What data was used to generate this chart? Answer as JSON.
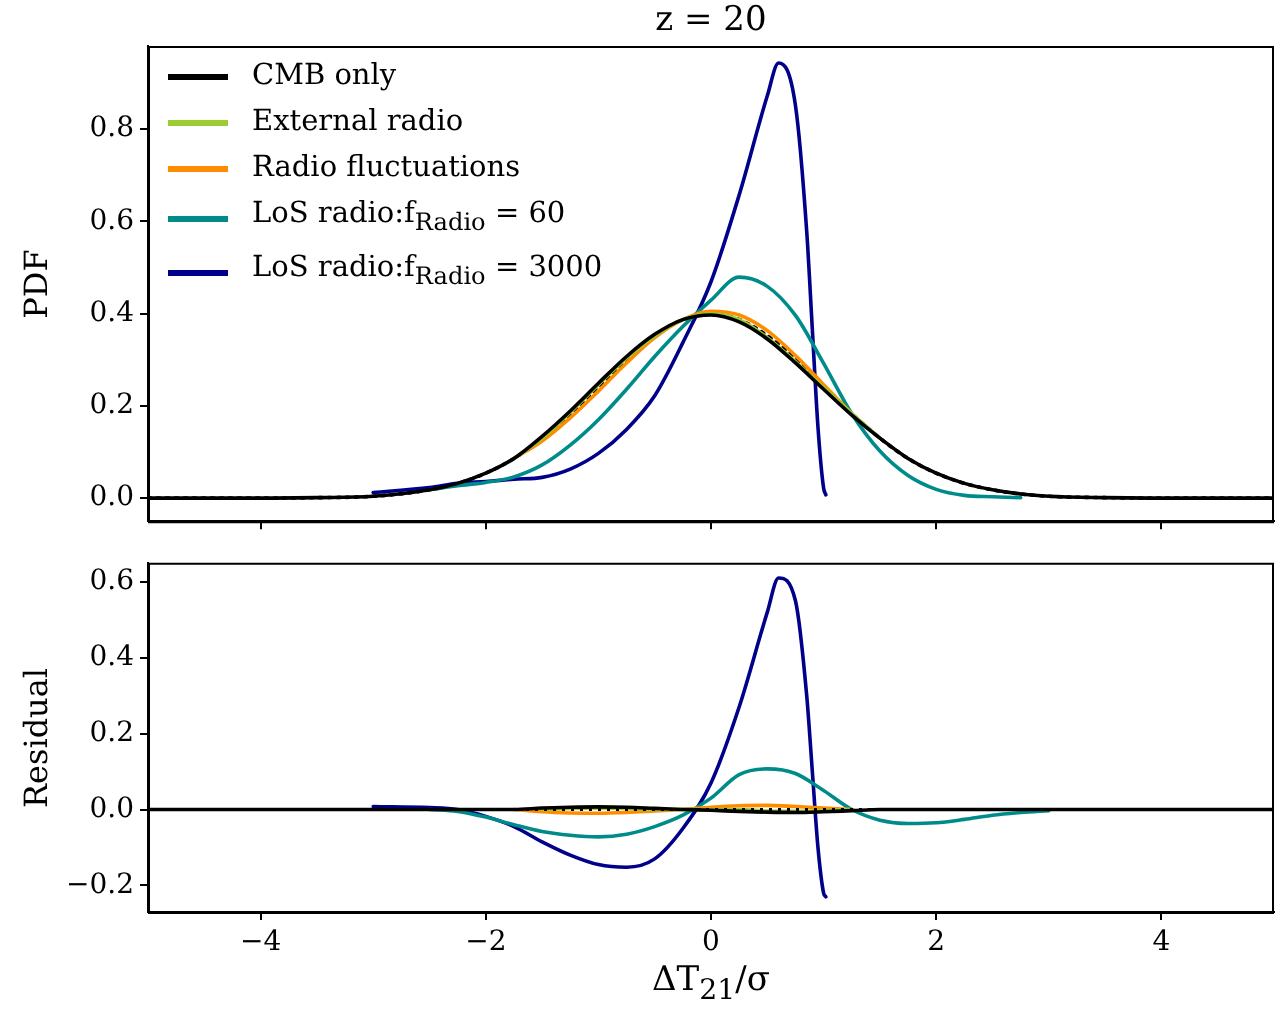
{
  "chart_data": [
    {
      "type": "line",
      "title": "z = 20",
      "ylabel": "PDF",
      "xlim": [
        -5,
        5
      ],
      "xticks": [
        -4,
        -2,
        0,
        2,
        4
      ],
      "ylim": [
        -0.05,
        0.98
      ],
      "yticks": [
        {
          "value": 0,
          "label": "0.0"
        },
        0.2,
        0.4,
        0.6,
        0.8
      ],
      "tick_labels": "y",
      "grid": false,
      "legend": "top left",
      "series": [
        {
          "name": "CMB only",
          "color": "#000000",
          "x": [
            -5,
            -4.5,
            -4,
            -3.5,
            -3,
            -2.5,
            -2.25,
            -2,
            -1.75,
            -1.5,
            -1.25,
            -1,
            -0.75,
            -0.5,
            -0.25,
            0,
            0.25,
            0.5,
            0.75,
            1,
            1.25,
            1.5,
            1.75,
            2,
            2.25,
            2.5,
            2.75,
            3,
            3.5,
            4,
            4.5,
            5
          ],
          "values": [
            0,
            0,
            0,
            0.001,
            0.004,
            0.018,
            0.032,
            0.054,
            0.086,
            0.134,
            0.189,
            0.249,
            0.307,
            0.355,
            0.387,
            0.397,
            0.382,
            0.345,
            0.293,
            0.236,
            0.18,
            0.13,
            0.086,
            0.054,
            0.032,
            0.018,
            0.009,
            0.004,
            0.001,
            0,
            0,
            0
          ]
        },
        {
          "name": "External radio",
          "color": "#9acd32",
          "x": [
            -1.75,
            -1.5,
            -1.25,
            -1,
            -0.75,
            -0.5,
            -0.25,
            0,
            0.25,
            0.5,
            0.75,
            1,
            1.25,
            1.5
          ],
          "values": [
            0.086,
            0.13,
            0.186,
            0.246,
            0.304,
            0.352,
            0.387,
            0.399,
            0.387,
            0.348,
            0.296,
            0.239,
            0.183,
            0.13
          ]
        },
        {
          "name": "Radio fluctuations",
          "color": "#ff8c00",
          "x": [
            -1.75,
            -1.5,
            -1.25,
            -1,
            -0.75,
            -0.5,
            -0.25,
            0,
            0.25,
            0.5,
            0.75,
            1,
            1.25
          ],
          "values": [
            0.086,
            0.124,
            0.174,
            0.232,
            0.293,
            0.348,
            0.387,
            0.405,
            0.397,
            0.363,
            0.309,
            0.246,
            0.183
          ]
        },
        {
          "name": "LoS radio:f$_{Radio}$ = 60",
          "color": "#008b8b",
          "x": [
            -2.5,
            -2.25,
            -2,
            -1.75,
            -1.5,
            -1.25,
            -1,
            -0.75,
            -0.5,
            -0.25,
            0,
            0.25,
            0.5,
            0.75,
            1,
            1.25,
            1.5,
            1.75,
            2,
            2.25,
            2.5,
            2.75
          ],
          "values": [
            0.018,
            0.027,
            0.034,
            0.046,
            0.072,
            0.115,
            0.17,
            0.236,
            0.307,
            0.372,
            0.429,
            0.479,
            0.459,
            0.396,
            0.292,
            0.183,
            0.102,
            0.049,
            0.019,
            0.006,
            0.003,
            0.001
          ]
        },
        {
          "name": "LoS radio:f$_{Radio}$ = 3000",
          "color": "#00008b",
          "x": [
            -3,
            -2.5,
            -2.25,
            -2,
            -1.75,
            -1.5,
            -1.25,
            -1,
            -0.75,
            -0.5,
            -0.25,
            0,
            0.25,
            0.5,
            0.6,
            0.75,
            0.85,
            0.9,
            0.95,
            1,
            1.02
          ],
          "values": [
            0.012,
            0.023,
            0.032,
            0.036,
            0.041,
            0.045,
            0.063,
            0.097,
            0.149,
            0.222,
            0.337,
            0.469,
            0.657,
            0.872,
            0.943,
            0.851,
            0.578,
            0.366,
            0.154,
            0.022,
            0.007
          ]
        },
        {
          "color": "#000000",
          "line_style": "dotted",
          "x": [
            -5,
            -4.5,
            -4,
            -3.5,
            -3,
            -2.5,
            -2.25,
            -2,
            -1.75,
            -1.5,
            -1.25,
            -1,
            -0.75,
            -0.5,
            -0.25,
            0,
            0.25,
            0.5,
            0.75,
            1,
            1.25,
            1.5,
            1.75,
            2,
            2.25,
            2.5,
            2.75,
            3,
            3.5,
            4,
            4.5,
            5
          ],
          "values": [
            0,
            0,
            0,
            0.001,
            0.004,
            0.018,
            0.032,
            0.054,
            0.086,
            0.13,
            0.183,
            0.242,
            0.301,
            0.352,
            0.387,
            0.399,
            0.387,
            0.352,
            0.301,
            0.242,
            0.183,
            0.13,
            0.086,
            0.054,
            0.032,
            0.018,
            0.009,
            0.004,
            0.001,
            0,
            0,
            0
          ]
        }
      ]
    },
    {
      "type": "line",
      "xlabel": "ΔT$_{21}$/σ",
      "ylabel": "Residual",
      "xlim": [
        -5,
        5
      ],
      "xticks": [
        -4,
        -2,
        0,
        2,
        4
      ],
      "ylim": [
        -0.27,
        0.65
      ],
      "yticks": [
        -0.2,
        {
          "value": 0,
          "label": "0.0"
        },
        0.2,
        0.4,
        0.6
      ],
      "grid": false,
      "ref_lines": [
        {
          "axis": "y",
          "value": 0,
          "color": "#000000",
          "line_style": "dotted"
        }
      ],
      "series": [
        {
          "color": "#000000",
          "x": [
            -5,
            -4.5,
            -4,
            -3.5,
            -3,
            -2.5,
            -2.25,
            -2,
            -1.75,
            -1.5,
            -1.25,
            -1,
            -0.75,
            -0.5,
            -0.25,
            0,
            0.25,
            0.5,
            0.75,
            1,
            1.25,
            1.5,
            1.75,
            2,
            2.25,
            2.5,
            2.75,
            3,
            3.5,
            4,
            4.5,
            5
          ],
          "values": [
            0,
            0,
            0,
            0,
            0,
            0,
            0,
            0,
            0,
            0.004,
            0.006,
            0.007,
            0.006,
            0.003,
            0,
            -0.002,
            -0.005,
            -0.007,
            -0.008,
            -0.006,
            -0.003,
            0,
            0,
            0,
            0,
            0,
            0,
            0,
            0,
            0,
            0,
            0
          ]
        },
        {
          "color": "#9acd32",
          "x": [
            -1.5,
            -1.25,
            -1,
            -0.75,
            -0.5,
            -0.25,
            0,
            0.25,
            0.5,
            0.75,
            1,
            1.25
          ],
          "values": [
            0,
            0.003,
            0.004,
            0.003,
            0,
            0,
            0,
            0,
            -0.004,
            -0.005,
            -0.003,
            0
          ]
        },
        {
          "color": "#ff8c00",
          "x": [
            -1.75,
            -1.5,
            -1.25,
            -1,
            -0.75,
            -0.5,
            -0.25,
            0,
            0.25,
            0.5,
            0.75,
            1,
            1.25
          ],
          "values": [
            0,
            -0.006,
            -0.009,
            -0.01,
            -0.008,
            -0.004,
            0,
            0.006,
            0.01,
            0.011,
            0.008,
            0.004,
            0
          ]
        },
        {
          "color": "#008b8b",
          "x": [
            -2.5,
            -2.25,
            -2,
            -1.75,
            -1.5,
            -1.25,
            -1,
            -0.75,
            -0.5,
            -0.25,
            0,
            0.25,
            0.5,
            0.75,
            1,
            1.25,
            1.5,
            1.75,
            2,
            2.25,
            2.5,
            2.75,
            3
          ],
          "values": [
            0,
            -0.005,
            -0.02,
            -0.04,
            -0.058,
            -0.068,
            -0.072,
            -0.065,
            -0.045,
            -0.015,
            0.03,
            0.092,
            0.107,
            0.095,
            0.05,
            0,
            -0.028,
            -0.037,
            -0.035,
            -0.026,
            -0.015,
            -0.008,
            -0.003
          ]
        },
        {
          "color": "#00008b",
          "x": [
            -3,
            -2.5,
            -2.25,
            -2,
            -1.75,
            -1.5,
            -1.25,
            -1,
            -0.75,
            -0.5,
            -0.25,
            0,
            0.25,
            0.5,
            0.6,
            0.75,
            0.85,
            0.9,
            0.95,
            1,
            1.02
          ],
          "values": [
            0.008,
            0.005,
            0,
            -0.018,
            -0.045,
            -0.085,
            -0.12,
            -0.145,
            -0.152,
            -0.13,
            -0.05,
            0.07,
            0.27,
            0.52,
            0.61,
            0.55,
            0.3,
            0.1,
            -0.1,
            -0.22,
            -0.23
          ]
        }
      ]
    }
  ]
}
